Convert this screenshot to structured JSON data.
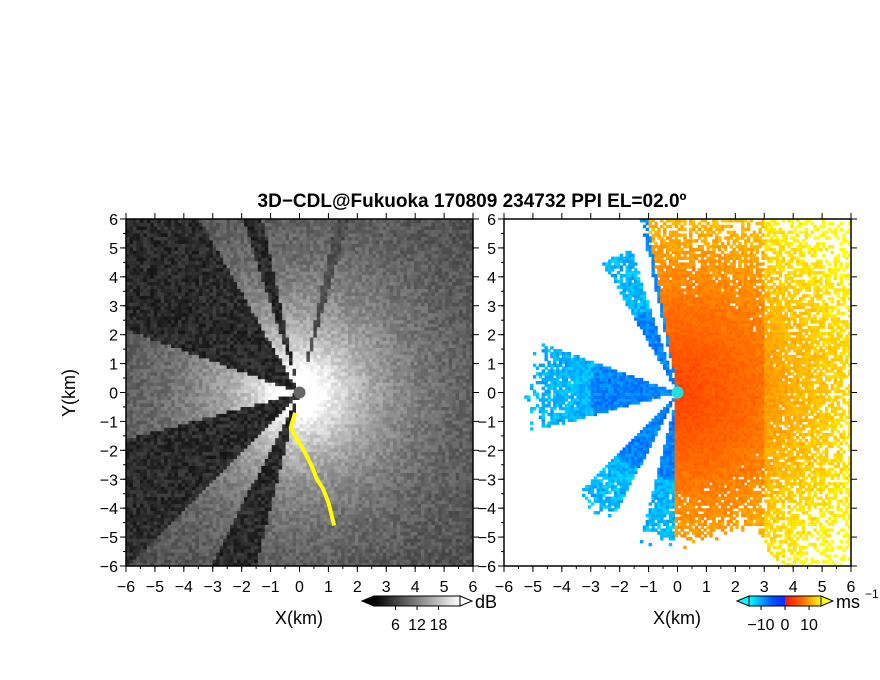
{
  "title": "3D−CDL@Fukuoka 170809 234732 PPI EL=02.0º",
  "chart_data": [
    {
      "type": "heatmap",
      "panel": "reflectivity",
      "xlabel": "X(km)",
      "ylabel": "Y(km)",
      "xlim": [
        -6,
        6
      ],
      "ylim": [
        -6,
        6
      ],
      "x_ticks": [
        "−6",
        "−5",
        "−4",
        "−3",
        "−2",
        "−1",
        "0",
        "1",
        "2",
        "3",
        "4",
        "5",
        "6"
      ],
      "y_ticks": [
        "6",
        "5",
        "4",
        "3",
        "2",
        "1",
        "0",
        "−1",
        "−2",
        "−3",
        "−4",
        "−5",
        "−6"
      ],
      "colorbar": {
        "unit": "dB",
        "ticks": [
          "6",
          "12",
          "18"
        ],
        "range": [
          0,
          24
        ],
        "colors": [
          "#000000",
          "#ffffff"
        ],
        "extend": "both"
      },
      "highlight_color": "#ffff00",
      "radar_marker_color": "#666666",
      "blocked_sectors_deg": [
        [
          102,
          108
        ],
        [
          120,
          160
        ],
        [
          195,
          225
        ],
        [
          243,
          256
        ]
      ]
    },
    {
      "type": "heatmap",
      "panel": "doppler_velocity",
      "xlabel": "X(km)",
      "xlim": [
        -6,
        6
      ],
      "ylim": [
        -6,
        6
      ],
      "x_ticks": [
        "−6",
        "−5",
        "−4",
        "−3",
        "−2",
        "−1",
        "0",
        "1",
        "2",
        "3",
        "4",
        "5",
        "6"
      ],
      "y_ticks": [
        "6",
        "5",
        "4",
        "3",
        "2",
        "1",
        "0",
        "−1",
        "−2",
        "−3",
        "−4",
        "−5",
        "−6"
      ],
      "colorbar": {
        "unit": "ms",
        "unit_exponent": "−1",
        "ticks": [
          "−10",
          "0",
          "10"
        ],
        "range": [
          -15,
          15
        ],
        "colors": [
          "#00ffff",
          "#0050ff",
          "#ff0000",
          "#ffff00"
        ],
        "extend": "both"
      },
      "radar_marker_color": "#22e0e0"
    }
  ]
}
